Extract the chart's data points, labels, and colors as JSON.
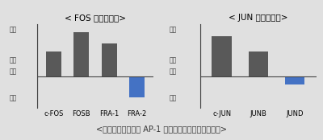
{
  "fos_title": "< FOS ファミリー>",
  "jun_title": "< JUN ファミリー>",
  "caption": "<紫外線照射による AP-1 構成タンパク質の発現変化>",
  "fos_categories": [
    "c-FOS",
    "FOSB",
    "FRA-1",
    "FRA-2"
  ],
  "fos_values": [
    1.4,
    2.5,
    1.9,
    -1.2
  ],
  "fos_colors": [
    "#595959",
    "#595959",
    "#595959",
    "#4472c4"
  ],
  "jun_categories": [
    "c-JUN",
    "JUNB",
    "JUND"
  ],
  "jun_values": [
    2.3,
    1.4,
    -0.45
  ],
  "jun_colors": [
    "#595959",
    "#595959",
    "#4472c4"
  ],
  "ylim": [
    -1.8,
    3.0
  ],
  "bg_color": "#e0e0e0",
  "axis_line_color": "#444444",
  "title_fontsize": 7.5,
  "caption_fontsize": 7.0,
  "tick_fontsize": 6.0,
  "ylabel_text_left": "上昇\n\n発現\n変化\n\n低下",
  "ylabel_text_right": "上昇\n\n発現\n変化\n\n低下"
}
